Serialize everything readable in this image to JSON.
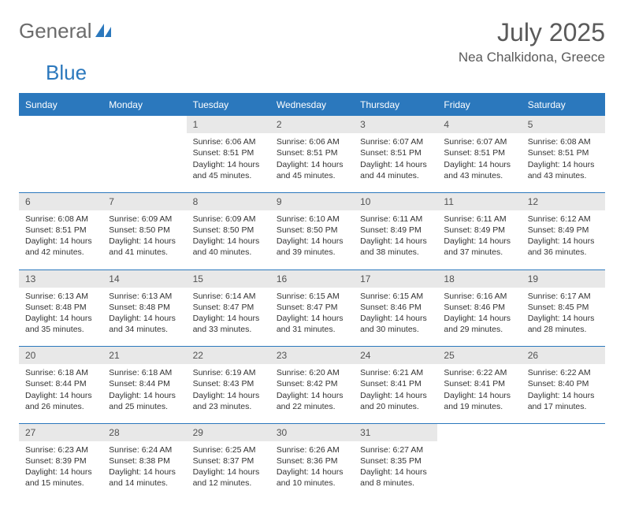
{
  "logo": {
    "part1": "General",
    "part2": "Blue"
  },
  "title": "July 2025",
  "location": "Nea Chalkidona, Greece",
  "colors": {
    "brand_blue": "#2b78bd",
    "logo_grey": "#6b6b6b",
    "header_text": "#5a5a5a",
    "daynum_bg": "#e8e8e8",
    "daynum_text": "#525252",
    "body_text": "#333333",
    "background": "#ffffff"
  },
  "day_names": [
    "Sunday",
    "Monday",
    "Tuesday",
    "Wednesday",
    "Thursday",
    "Friday",
    "Saturday"
  ],
  "weeks": [
    [
      null,
      null,
      {
        "n": "1",
        "sunrise": "Sunrise: 6:06 AM",
        "sunset": "Sunset: 8:51 PM",
        "daylight": "Daylight: 14 hours and 45 minutes."
      },
      {
        "n": "2",
        "sunrise": "Sunrise: 6:06 AM",
        "sunset": "Sunset: 8:51 PM",
        "daylight": "Daylight: 14 hours and 45 minutes."
      },
      {
        "n": "3",
        "sunrise": "Sunrise: 6:07 AM",
        "sunset": "Sunset: 8:51 PM",
        "daylight": "Daylight: 14 hours and 44 minutes."
      },
      {
        "n": "4",
        "sunrise": "Sunrise: 6:07 AM",
        "sunset": "Sunset: 8:51 PM",
        "daylight": "Daylight: 14 hours and 43 minutes."
      },
      {
        "n": "5",
        "sunrise": "Sunrise: 6:08 AM",
        "sunset": "Sunset: 8:51 PM",
        "daylight": "Daylight: 14 hours and 43 minutes."
      }
    ],
    [
      {
        "n": "6",
        "sunrise": "Sunrise: 6:08 AM",
        "sunset": "Sunset: 8:51 PM",
        "daylight": "Daylight: 14 hours and 42 minutes."
      },
      {
        "n": "7",
        "sunrise": "Sunrise: 6:09 AM",
        "sunset": "Sunset: 8:50 PM",
        "daylight": "Daylight: 14 hours and 41 minutes."
      },
      {
        "n": "8",
        "sunrise": "Sunrise: 6:09 AM",
        "sunset": "Sunset: 8:50 PM",
        "daylight": "Daylight: 14 hours and 40 minutes."
      },
      {
        "n": "9",
        "sunrise": "Sunrise: 6:10 AM",
        "sunset": "Sunset: 8:50 PM",
        "daylight": "Daylight: 14 hours and 39 minutes."
      },
      {
        "n": "10",
        "sunrise": "Sunrise: 6:11 AM",
        "sunset": "Sunset: 8:49 PM",
        "daylight": "Daylight: 14 hours and 38 minutes."
      },
      {
        "n": "11",
        "sunrise": "Sunrise: 6:11 AM",
        "sunset": "Sunset: 8:49 PM",
        "daylight": "Daylight: 14 hours and 37 minutes."
      },
      {
        "n": "12",
        "sunrise": "Sunrise: 6:12 AM",
        "sunset": "Sunset: 8:49 PM",
        "daylight": "Daylight: 14 hours and 36 minutes."
      }
    ],
    [
      {
        "n": "13",
        "sunrise": "Sunrise: 6:13 AM",
        "sunset": "Sunset: 8:48 PM",
        "daylight": "Daylight: 14 hours and 35 minutes."
      },
      {
        "n": "14",
        "sunrise": "Sunrise: 6:13 AM",
        "sunset": "Sunset: 8:48 PM",
        "daylight": "Daylight: 14 hours and 34 minutes."
      },
      {
        "n": "15",
        "sunrise": "Sunrise: 6:14 AM",
        "sunset": "Sunset: 8:47 PM",
        "daylight": "Daylight: 14 hours and 33 minutes."
      },
      {
        "n": "16",
        "sunrise": "Sunrise: 6:15 AM",
        "sunset": "Sunset: 8:47 PM",
        "daylight": "Daylight: 14 hours and 31 minutes."
      },
      {
        "n": "17",
        "sunrise": "Sunrise: 6:15 AM",
        "sunset": "Sunset: 8:46 PM",
        "daylight": "Daylight: 14 hours and 30 minutes."
      },
      {
        "n": "18",
        "sunrise": "Sunrise: 6:16 AM",
        "sunset": "Sunset: 8:46 PM",
        "daylight": "Daylight: 14 hours and 29 minutes."
      },
      {
        "n": "19",
        "sunrise": "Sunrise: 6:17 AM",
        "sunset": "Sunset: 8:45 PM",
        "daylight": "Daylight: 14 hours and 28 minutes."
      }
    ],
    [
      {
        "n": "20",
        "sunrise": "Sunrise: 6:18 AM",
        "sunset": "Sunset: 8:44 PM",
        "daylight": "Daylight: 14 hours and 26 minutes."
      },
      {
        "n": "21",
        "sunrise": "Sunrise: 6:18 AM",
        "sunset": "Sunset: 8:44 PM",
        "daylight": "Daylight: 14 hours and 25 minutes."
      },
      {
        "n": "22",
        "sunrise": "Sunrise: 6:19 AM",
        "sunset": "Sunset: 8:43 PM",
        "daylight": "Daylight: 14 hours and 23 minutes."
      },
      {
        "n": "23",
        "sunrise": "Sunrise: 6:20 AM",
        "sunset": "Sunset: 8:42 PM",
        "daylight": "Daylight: 14 hours and 22 minutes."
      },
      {
        "n": "24",
        "sunrise": "Sunrise: 6:21 AM",
        "sunset": "Sunset: 8:41 PM",
        "daylight": "Daylight: 14 hours and 20 minutes."
      },
      {
        "n": "25",
        "sunrise": "Sunrise: 6:22 AM",
        "sunset": "Sunset: 8:41 PM",
        "daylight": "Daylight: 14 hours and 19 minutes."
      },
      {
        "n": "26",
        "sunrise": "Sunrise: 6:22 AM",
        "sunset": "Sunset: 8:40 PM",
        "daylight": "Daylight: 14 hours and 17 minutes."
      }
    ],
    [
      {
        "n": "27",
        "sunrise": "Sunrise: 6:23 AM",
        "sunset": "Sunset: 8:39 PM",
        "daylight": "Daylight: 14 hours and 15 minutes."
      },
      {
        "n": "28",
        "sunrise": "Sunrise: 6:24 AM",
        "sunset": "Sunset: 8:38 PM",
        "daylight": "Daylight: 14 hours and 14 minutes."
      },
      {
        "n": "29",
        "sunrise": "Sunrise: 6:25 AM",
        "sunset": "Sunset: 8:37 PM",
        "daylight": "Daylight: 14 hours and 12 minutes."
      },
      {
        "n": "30",
        "sunrise": "Sunrise: 6:26 AM",
        "sunset": "Sunset: 8:36 PM",
        "daylight": "Daylight: 14 hours and 10 minutes."
      },
      {
        "n": "31",
        "sunrise": "Sunrise: 6:27 AM",
        "sunset": "Sunset: 8:35 PM",
        "daylight": "Daylight: 14 hours and 8 minutes."
      },
      null,
      null
    ]
  ]
}
